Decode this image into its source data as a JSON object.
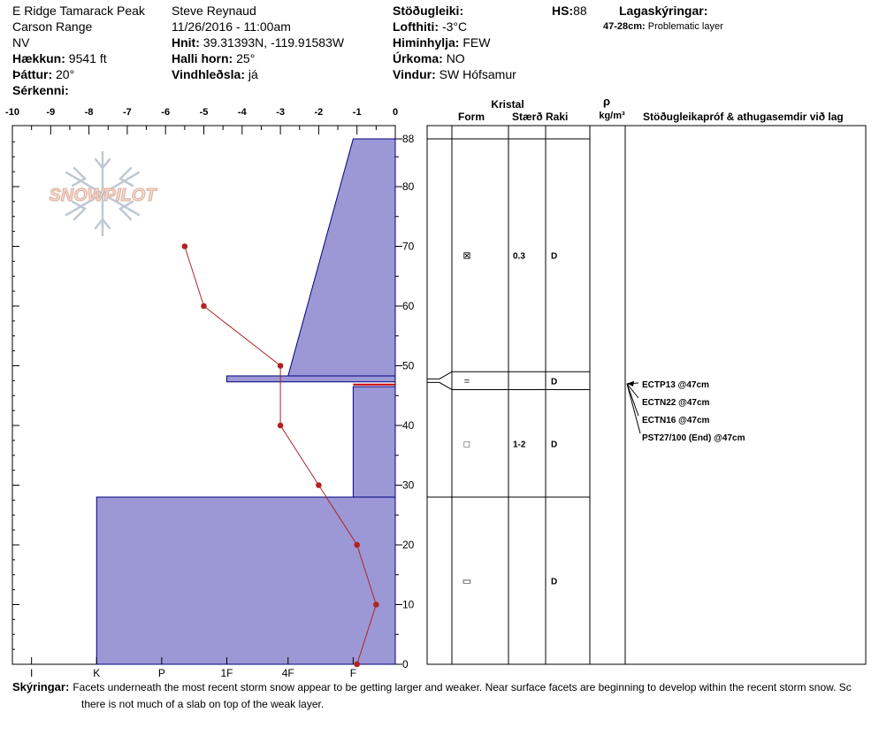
{
  "header": {
    "location": "E Ridge Tamarack Peak",
    "range": "Carson Range",
    "aspect": "NV",
    "elevation_label": "Hækkun:",
    "elevation_value": "9541 ft",
    "slope_label": "Þáttur:",
    "slope_value": "20°",
    "features_label": "Sérkenni:",
    "observer": "Steve Reynaud",
    "datetime": "11/26/2016 - 11:00am",
    "coords_label": "Hnit:",
    "coords_value": "39.31393N, -119.91583W",
    "angle_label": "Halli horn:",
    "angle_value": "25°",
    "wind_loading_label": "Vindhleðsla:",
    "wind_loading_value": "já",
    "stability_label": "Stöðugleiki:",
    "air_temp_label": "Lofthiti:",
    "air_temp_value": "-3°C",
    "sky_label": "Himinhylja:",
    "sky_value": "FEW",
    "precip_label": "Úrkoma:",
    "precip_value": "NO",
    "wind_label": "Vindur:",
    "wind_value": "SW Hófsamur",
    "hs_label": "HS:",
    "hs_value": "88",
    "layer_notes_label": "Lagaskýringar:",
    "layer_note_range": "47-28cm:",
    "layer_note_text": "Problematic layer"
  },
  "logo_text": "SNOWPILOT",
  "table": {
    "kristal_label": "Kristal",
    "form_label": "Form",
    "size_label": "Stærð",
    "moisture_label": "Raki",
    "rho_label": "ρ",
    "density_unit": "kg/m³",
    "stability_col_label": "Stöðugleikapróf & athugasemdir við lag",
    "rows": [
      {
        "form": "⊠",
        "size": "0.3",
        "moisture": "D",
        "center": 68.5
      },
      {
        "form": "=",
        "size": "",
        "moisture": "D",
        "center": 47.5
      },
      {
        "form": "□",
        "size": "1-2",
        "moisture": "D",
        "center": 37
      },
      {
        "form": "▭",
        "size": "",
        "moisture": "D",
        "center": 14
      }
    ],
    "boundaries": [
      88,
      49,
      46,
      28
    ],
    "tests": [
      "ECTP13 @47cm",
      "ECTN22 @47cm",
      "ECTN16 @47cm",
      "PST27/100 (End) @47cm"
    ],
    "test_depth": 47
  },
  "comments": {
    "label": "Skýringar:",
    "line1": "Facets underneath the most recent storm snow appear to be getting larger and weaker.  Near surface facets are beginning to develop within the recent storm snow.  Sc",
    "line2": "there is not much of a slab on top of the weak layer."
  },
  "chart_data": {
    "type": "snow_profile",
    "temperature_axis": {
      "min": -10,
      "max": 0,
      "ticks": [
        -10,
        -9,
        -8,
        -7,
        -6,
        -5,
        -4,
        -3,
        -2,
        -1,
        0
      ]
    },
    "height_axis": {
      "min": 0,
      "max": 88,
      "ticks": [
        0,
        10,
        20,
        30,
        40,
        50,
        60,
        70,
        80,
        88
      ]
    },
    "hardness_ticks": [
      "I",
      "K",
      "P",
      "1F",
      "4F",
      "F"
    ],
    "temperature_profile": [
      {
        "temp": -1.0,
        "height": 0
      },
      {
        "temp": -0.5,
        "height": 10
      },
      {
        "temp": -1.0,
        "height": 20
      },
      {
        "temp": -2.0,
        "height": 30
      },
      {
        "temp": -3.0,
        "height": 40
      },
      {
        "temp": -3.0,
        "height": 50
      },
      {
        "temp": -5.0,
        "height": 60
      },
      {
        "temp": -5.5,
        "height": 70
      }
    ],
    "hardness_layers": [
      {
        "bottom": 0,
        "top": 28,
        "hardness_temp": -7.8
      },
      {
        "bottom": 28,
        "top": 46.5,
        "hardness_temp": -1.1
      },
      {
        "bottom": 47.3,
        "top": 48.3,
        "hardness_temp": -4.4
      },
      {
        "bottom": 48.3,
        "top": 88,
        "shape": "tapered",
        "hardness_temp_bottom": -2.8,
        "hardness_temp_top": -1.1
      }
    ],
    "weak_layer_height": 47
  }
}
